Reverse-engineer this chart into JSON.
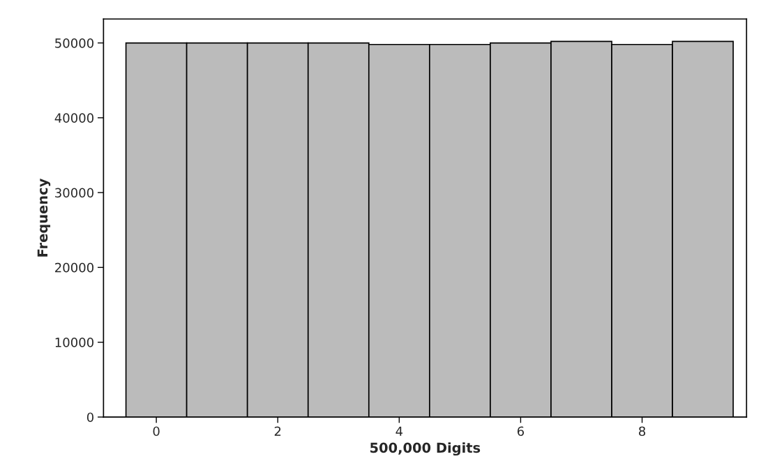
{
  "chart_data": {
    "type": "histogram",
    "xlabel": "500,000 Digits",
    "ylabel": "Frequency",
    "bins": [
      -0.5,
      0.5,
      1.5,
      2.5,
      3.5,
      4.5,
      5.5,
      6.5,
      7.5,
      8.5,
      9.5
    ],
    "values": [
      50000,
      50000,
      50000,
      50000,
      49800,
      49800,
      50000,
      50200,
      49800,
      50200
    ],
    "color": "#bbbbbb",
    "xlim": [
      -0.87,
      9.72
    ],
    "xticks": [
      0,
      2,
      4,
      6,
      8
    ],
    "ylim": [
      0,
      53200
    ],
    "yticks": [
      0,
      10000,
      20000,
      30000,
      40000,
      50000
    ],
    "grid": false
  }
}
